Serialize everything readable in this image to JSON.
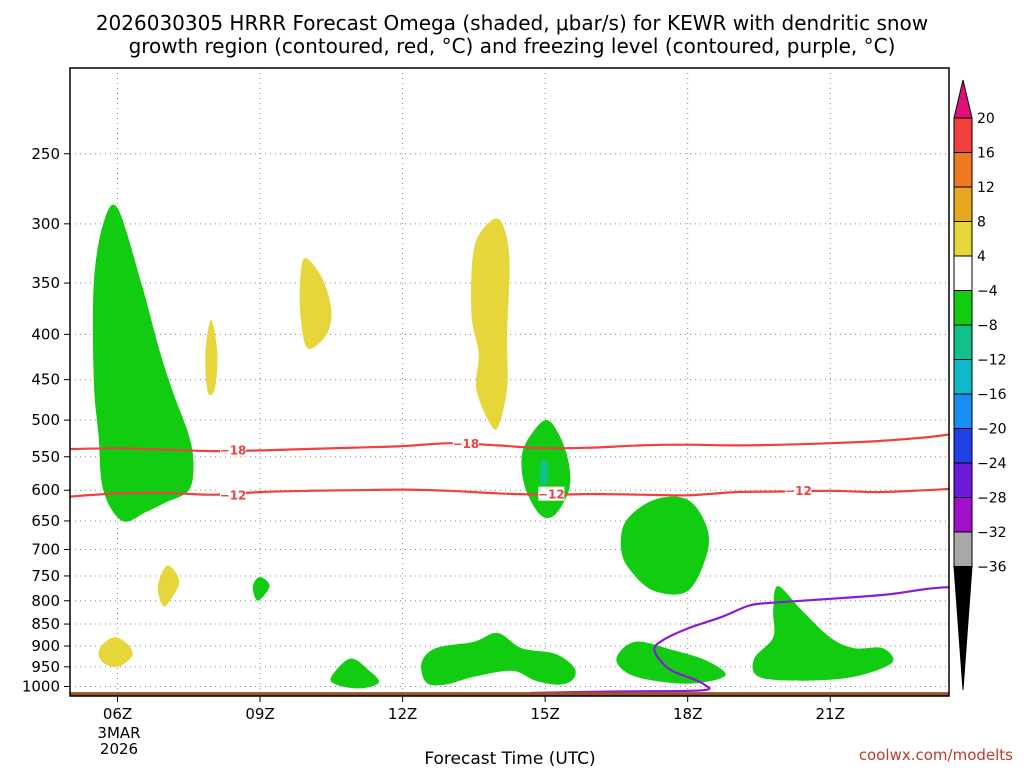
{
  "title_line1": "2026030305 HRRR Forecast Omega (shaded, μbar/s) for KEWR with dendritic snow",
  "title_line2": "growth region (contoured, red, °C) and freezing level (contoured, purple, °C)",
  "credit": "coolwx.com/modelts",
  "chart_data": {
    "type": "contour",
    "title": "2026030305 HRRR Forecast Omega (shaded, μbar/s) for KEWR with dendritic snow growth region (contoured, red, °C) and freezing level (contoured, purple, °C)",
    "xlabel": "Forecast Time (UTC)",
    "ylabel": "",
    "xlim": [
      5,
      23.5
    ],
    "ylim": [
      1025,
      200
    ],
    "x_ticks": [
      {
        "value": 6,
        "label": "06Z"
      },
      {
        "value": 9,
        "label": "09Z"
      },
      {
        "value": 12,
        "label": "12Z"
      },
      {
        "value": 15,
        "label": "15Z"
      },
      {
        "value": 18,
        "label": "18Z"
      },
      {
        "value": 21,
        "label": "21Z"
      }
    ],
    "date_label": [
      "3MAR",
      "2026"
    ],
    "y_ticks": [
      250,
      300,
      350,
      400,
      450,
      500,
      550,
      600,
      650,
      700,
      750,
      800,
      850,
      900,
      950,
      1000
    ],
    "grid": true,
    "colorbar": {
      "labels": [
        "20",
        "16",
        "12",
        "8",
        "4",
        "−4",
        "−8",
        "−12",
        "−16",
        "−20",
        "−24",
        "−28",
        "−32",
        "−36"
      ],
      "bins": [
        {
          "from": 20,
          "to": 99,
          "color": "#e0107a"
        },
        {
          "from": 16,
          "to": 20,
          "color": "#f04040"
        },
        {
          "from": 12,
          "to": 16,
          "color": "#ee7a22"
        },
        {
          "from": 8,
          "to": 12,
          "color": "#e6a820"
        },
        {
          "from": 4,
          "to": 8,
          "color": "#e6d63a"
        },
        {
          "from": -4,
          "to": 4,
          "color": "#ffffff"
        },
        {
          "from": -8,
          "to": -4,
          "color": "#12cc12"
        },
        {
          "from": -12,
          "to": -8,
          "color": "#10c28a"
        },
        {
          "from": -16,
          "to": -12,
          "color": "#10b8c8"
        },
        {
          "from": -20,
          "to": -16,
          "color": "#1a8ef0"
        },
        {
          "from": -24,
          "to": -20,
          "color": "#2040e8"
        },
        {
          "from": -28,
          "to": -24,
          "color": "#6a1ad8"
        },
        {
          "from": -32,
          "to": -28,
          "color": "#a010c8"
        },
        {
          "from": -36,
          "to": -32,
          "color": "#a8a8a8"
        },
        {
          "from": -99,
          "to": -36,
          "color": "#000000"
        }
      ]
    },
    "contours": [
      {
        "name": "-18C isotherm",
        "color": "#f04040",
        "label": "-18",
        "label_positions": [
          [
            8.2,
            541
          ],
          [
            13.1,
            532
          ]
        ],
        "points": [
          [
            5,
            539
          ],
          [
            6,
            538
          ],
          [
            7,
            540
          ],
          [
            8,
            542
          ],
          [
            9,
            541
          ],
          [
            10,
            539
          ],
          [
            11,
            537
          ],
          [
            12,
            535
          ],
          [
            13,
            531
          ],
          [
            14,
            534
          ],
          [
            15,
            538
          ],
          [
            16,
            537
          ],
          [
            17,
            534
          ],
          [
            18,
            533
          ],
          [
            19,
            534
          ],
          [
            20,
            533
          ],
          [
            21,
            531
          ],
          [
            22,
            528
          ],
          [
            23,
            523
          ],
          [
            23.5,
            519
          ]
        ]
      },
      {
        "name": "-12C isotherm",
        "color": "#f04040",
        "label": "-12",
        "label_positions": [
          [
            8.2,
            608
          ],
          [
            14.9,
            607
          ],
          [
            20.1,
            601
          ]
        ],
        "points": [
          [
            5,
            610
          ],
          [
            6,
            605
          ],
          [
            7,
            604
          ],
          [
            8,
            607
          ],
          [
            9,
            603
          ],
          [
            10,
            601
          ],
          [
            11,
            600
          ],
          [
            12,
            599
          ],
          [
            13,
            601
          ],
          [
            14,
            605
          ],
          [
            15,
            607
          ],
          [
            16,
            606
          ],
          [
            17,
            607
          ],
          [
            18,
            608
          ],
          [
            19,
            603
          ],
          [
            20,
            602
          ],
          [
            21,
            601
          ],
          [
            22,
            603
          ],
          [
            23,
            600
          ],
          [
            23.5,
            598
          ]
        ]
      },
      {
        "name": "freezing level",
        "color": "#8a1ad8",
        "label": "",
        "points": [
          [
            14.7,
            1017
          ],
          [
            16.5,
            1013
          ],
          [
            18.3,
            1010
          ],
          [
            18.35,
            995
          ],
          [
            18.1,
            980
          ],
          [
            17.6,
            955
          ],
          [
            17.3,
            910
          ],
          [
            17.5,
            885
          ],
          [
            18,
            860
          ],
          [
            18.7,
            835
          ],
          [
            19.3,
            810
          ],
          [
            19.8,
            804
          ],
          [
            21,
            796
          ],
          [
            22.2,
            787
          ],
          [
            23,
            776
          ],
          [
            23.5,
            772
          ]
        ]
      }
    ],
    "shaded_regions": [
      {
        "name": "green-06z",
        "bin": "-8 to -4",
        "color": "#12cc12",
        "points": [
          [
            6.0,
            288
          ],
          [
            6.5,
            350
          ],
          [
            6.9,
            420
          ],
          [
            7.2,
            470
          ],
          [
            7.5,
            520
          ],
          [
            7.6,
            560
          ],
          [
            7.5,
            600
          ],
          [
            7.0,
            620
          ],
          [
            6.6,
            635
          ],
          [
            6.1,
            650
          ],
          [
            5.7,
            600
          ],
          [
            5.6,
            520
          ],
          [
            5.5,
            450
          ],
          [
            5.5,
            350
          ],
          [
            5.7,
            300
          ]
        ]
      },
      {
        "name": "green-1445z-core",
        "bin": "-8 to -4",
        "color": "#12cc12",
        "points": [
          [
            15.0,
            500
          ],
          [
            15.3,
            520
          ],
          [
            15.5,
            560
          ],
          [
            15.5,
            600
          ],
          [
            15.2,
            640
          ],
          [
            14.9,
            640
          ],
          [
            14.6,
            600
          ],
          [
            14.5,
            560
          ],
          [
            14.6,
            530
          ]
        ]
      },
      {
        "name": "teal-1445z-spot",
        "bin": "-12 to -8",
        "color": "#10c28a",
        "points": [
          [
            14.93,
            555
          ],
          [
            15.05,
            560
          ],
          [
            15.05,
            585
          ],
          [
            14.95,
            592
          ],
          [
            14.88,
            580
          ]
        ]
      },
      {
        "name": "green-1730z",
        "bin": "-8 to -4",
        "color": "#12cc12",
        "points": [
          [
            17.3,
            615
          ],
          [
            18.0,
            615
          ],
          [
            18.4,
            660
          ],
          [
            18.4,
            710
          ],
          [
            18.0,
            780
          ],
          [
            17.3,
            780
          ],
          [
            16.8,
            740
          ],
          [
            16.6,
            700
          ],
          [
            16.7,
            650
          ]
        ]
      },
      {
        "name": "green-09z",
        "bin": "-8 to -4",
        "color": "#12cc12",
        "points": [
          [
            9.0,
            752
          ],
          [
            9.2,
            770
          ],
          [
            8.95,
            800
          ],
          [
            8.85,
            770
          ]
        ]
      },
      {
        "name": "green-1100z",
        "bin": "-8 to -4",
        "color": "#12cc12",
        "points": [
          [
            10.9,
            930
          ],
          [
            11.3,
            960
          ],
          [
            11.5,
            990
          ],
          [
            11.1,
            1005
          ],
          [
            10.6,
            995
          ],
          [
            10.5,
            975
          ]
        ]
      },
      {
        "name": "green-1400z",
        "bin": "-8 to -4",
        "color": "#12cc12",
        "points": [
          [
            14.0,
            870
          ],
          [
            14.5,
            905
          ],
          [
            15.2,
            918
          ],
          [
            15.6,
            950
          ],
          [
            15.6,
            980
          ],
          [
            15.3,
            995
          ],
          [
            14.8,
            985
          ],
          [
            14.3,
            960
          ],
          [
            13.5,
            975
          ],
          [
            12.9,
            995
          ],
          [
            12.5,
            990
          ],
          [
            12.4,
            940
          ],
          [
            12.7,
            905
          ],
          [
            13.5,
            890
          ]
        ]
      },
      {
        "name": "green-1745z",
        "bin": "-8 to -4",
        "color": "#12cc12",
        "points": [
          [
            16.9,
            890
          ],
          [
            17.7,
            910
          ],
          [
            18.4,
            935
          ],
          [
            18.8,
            970
          ],
          [
            18.3,
            990
          ],
          [
            17.6,
            990
          ],
          [
            16.8,
            970
          ],
          [
            16.5,
            930
          ]
        ]
      },
      {
        "name": "green-2045z",
        "bin": "-8 to -4",
        "color": "#12cc12",
        "points": [
          [
            19.9,
            770
          ],
          [
            20.4,
            820
          ],
          [
            21.0,
            880
          ],
          [
            21.5,
            905
          ],
          [
            22.1,
            905
          ],
          [
            22.3,
            940
          ],
          [
            21.5,
            975
          ],
          [
            20.4,
            985
          ],
          [
            19.5,
            975
          ],
          [
            19.4,
            930
          ],
          [
            19.8,
            880
          ],
          [
            19.8,
            820
          ]
        ]
      },
      {
        "name": "yellow-06z-low",
        "bin": "4 to 8",
        "color": "#e6d63a",
        "points": [
          [
            5.98,
            880
          ],
          [
            6.25,
            900
          ],
          [
            6.3,
            925
          ],
          [
            6.0,
            950
          ],
          [
            5.7,
            940
          ],
          [
            5.6,
            915
          ],
          [
            5.75,
            890
          ]
        ]
      },
      {
        "name": "yellow-07z",
        "bin": "4 to 8",
        "color": "#e6d63a",
        "points": [
          [
            7.05,
            730
          ],
          [
            7.3,
            760
          ],
          [
            7.1,
            800
          ],
          [
            6.95,
            810
          ],
          [
            6.85,
            770
          ]
        ]
      },
      {
        "name": "yellow-08z",
        "bin": "4 to 8",
        "color": "#e6d63a",
        "points": [
          [
            7.97,
            385
          ],
          [
            8.1,
            420
          ],
          [
            8.05,
            460
          ],
          [
            7.9,
            465
          ],
          [
            7.85,
            420
          ]
        ]
      },
      {
        "name": "yellow-10z",
        "bin": "4 to 8",
        "color": "#e6d63a",
        "points": [
          [
            9.95,
            328
          ],
          [
            10.3,
            345
          ],
          [
            10.5,
            375
          ],
          [
            10.4,
            400
          ],
          [
            10.0,
            415
          ],
          [
            9.85,
            380
          ],
          [
            9.85,
            345
          ]
        ]
      },
      {
        "name": "yellow-14z",
        "bin": "4 to 8",
        "color": "#e6d63a",
        "points": [
          [
            13.85,
            298
          ],
          [
            14.1,
            300
          ],
          [
            14.25,
            330
          ],
          [
            14.2,
            400
          ],
          [
            14.2,
            460
          ],
          [
            14.0,
            510
          ],
          [
            13.8,
            500
          ],
          [
            13.55,
            460
          ],
          [
            13.6,
            420
          ],
          [
            13.45,
            380
          ],
          [
            13.5,
            320
          ]
        ]
      }
    ],
    "terrain_bar": {
      "name": "surface",
      "color": "#a0522d",
      "pressure": 1020
    }
  }
}
